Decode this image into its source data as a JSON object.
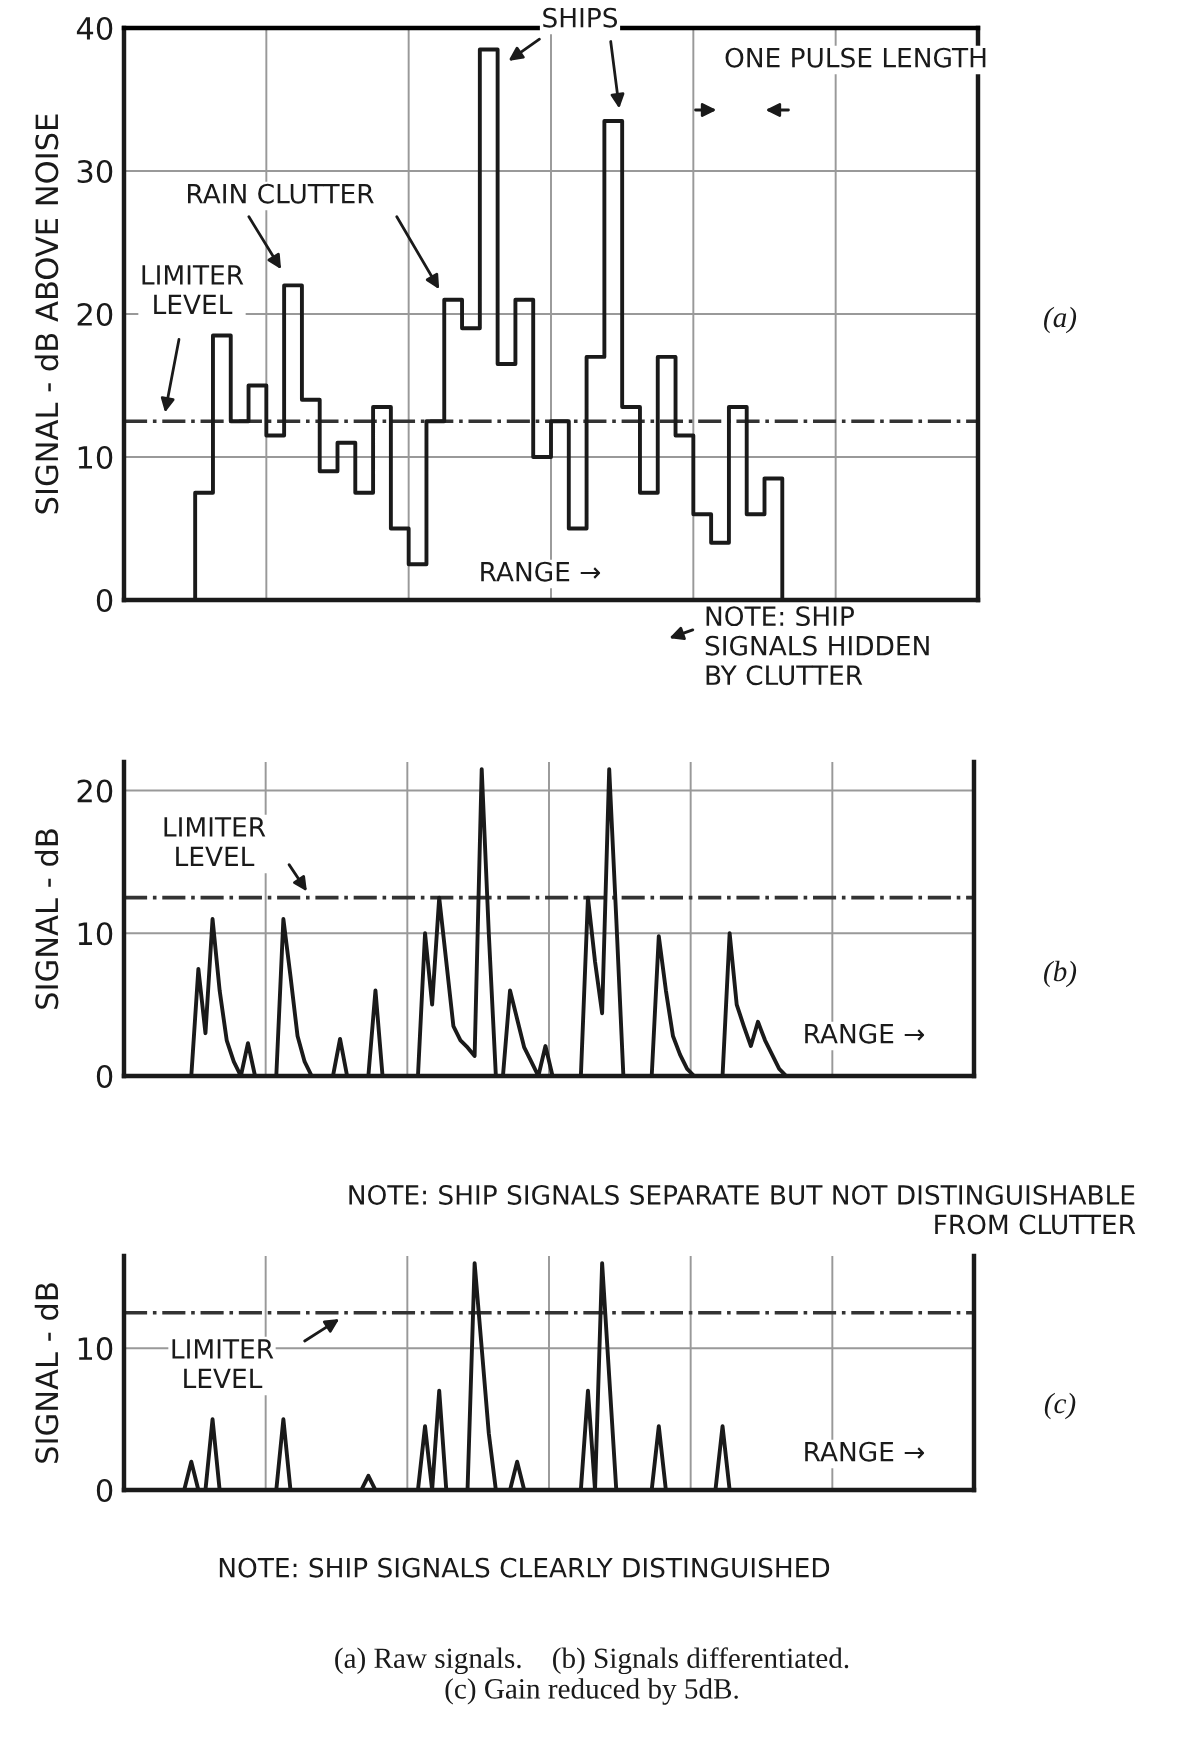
{
  "chart_data": [
    {
      "type": "step",
      "ylabel": "SIGNAL - dB ABOVE NOISE",
      "ylim": [
        0,
        40
      ],
      "yticks": [
        0,
        10,
        20,
        30,
        40
      ],
      "grid": true,
      "categories": [
        null,
        null,
        null,
        null,
        null,
        null,
        null,
        null,
        null,
        null,
        null,
        null,
        null,
        null,
        null,
        null,
        null,
        null,
        null,
        null,
        null,
        null,
        null,
        null,
        null,
        null,
        null,
        null,
        null,
        null,
        null,
        null,
        null,
        null,
        null,
        null,
        null,
        null,
        null,
        null,
        null,
        null,
        null,
        null,
        null,
        null,
        null,
        null
      ],
      "series": [
        {
          "color": "#1a1a1a",
          "values": [
            0,
            0,
            0,
            0,
            7.5,
            18.5,
            12.5,
            15,
            11.5,
            22,
            14,
            9,
            11,
            7.5,
            13.5,
            5,
            2.5,
            12.5,
            21,
            19,
            38.5,
            16.5,
            21,
            10,
            12.5,
            5,
            17,
            33.5,
            13.5,
            7.5,
            17,
            11.5,
            6,
            4,
            13.5,
            6,
            8.5,
            0,
            0,
            0,
            0,
            0,
            0,
            0,
            0,
            0,
            0,
            0
          ]
        }
      ],
      "ref_lines": [
        {
          "axis": "y",
          "value": 12.5,
          "label": "LIMITER\nLEVEL",
          "line_style": "dashdot",
          "color": "#333333"
        }
      ],
      "annotations": [
        "SHIPS",
        "RAIN CLUTTER",
        "ONE PULSE LENGTH",
        "RANGE →",
        "NOTE: SHIP\nSIGNALS HIDDEN\nBY CLUTTER",
        "(a)"
      ]
    },
    {
      "type": "line",
      "ylabel": "SIGNAL - dB",
      "ylim": [
        0,
        22
      ],
      "yticks": [
        0,
        10,
        20
      ],
      "grid": true,
      "categories": [
        null,
        null,
        null,
        null,
        null,
        null,
        null,
        null,
        null,
        null,
        null,
        null,
        null,
        null,
        null,
        null,
        null,
        null,
        null,
        null,
        null,
        null,
        null,
        null,
        null,
        null,
        null,
        null,
        null,
        null,
        null,
        null,
        null,
        null,
        null,
        null,
        null,
        null,
        null,
        null,
        null,
        null,
        null,
        null,
        null,
        null,
        null,
        null,
        null,
        null,
        null,
        null,
        null,
        null,
        null,
        null,
        null,
        null,
        null,
        null,
        null,
        null,
        null,
        null,
        null,
        null,
        null,
        null,
        null,
        null,
        null,
        null,
        null,
        null,
        null,
        null,
        null,
        null,
        null,
        null,
        null,
        null,
        null,
        null,
        null,
        null,
        null,
        null,
        null,
        null,
        null,
        null,
        null,
        null,
        null,
        null,
        null,
        null,
        null,
        null,
        null,
        null,
        null,
        null,
        null,
        null,
        null,
        null,
        null,
        null,
        null,
        null,
        null,
        null,
        null,
        null,
        null,
        null,
        null,
        null
      ],
      "series": [
        {
          "color": "#1a1a1a",
          "values": [
            null,
            null,
            null,
            null,
            null,
            null,
            null,
            null,
            null,
            0,
            7.5,
            3,
            11,
            6,
            2.5,
            1,
            0,
            2.3,
            0,
            0,
            0,
            0,
            11,
            7,
            2.8,
            1,
            0,
            0,
            0,
            0,
            2.6,
            0,
            0,
            0,
            0,
            6,
            0,
            0,
            0,
            0,
            0,
            0,
            10,
            5,
            12.5,
            8,
            3.5,
            2.5,
            2,
            1.4,
            21.5,
            10,
            0,
            0,
            6,
            4,
            2,
            1,
            0,
            2.1,
            0,
            0,
            0,
            0,
            0,
            12.5,
            8,
            4.4,
            21.5,
            11,
            0,
            0,
            0,
            0,
            0,
            9.8,
            6,
            2.8,
            1.5,
            0.5,
            0,
            0,
            0,
            0,
            0,
            10,
            5,
            3.5,
            2.1,
            3.8,
            2.5,
            1.5,
            0.5,
            0,
            null,
            null,
            null,
            null,
            null,
            null,
            null,
            null,
            null,
            null,
            null,
            null,
            null,
            null,
            null,
            null,
            null,
            null,
            null,
            null,
            null,
            null,
            null,
            null,
            null,
            null
          ]
        }
      ],
      "ref_lines": [
        {
          "axis": "y",
          "value": 12.5,
          "label": "LIMITER\nLEVEL",
          "line_style": "dashdot",
          "color": "#333333"
        }
      ],
      "annotations": [
        "RANGE →",
        "NOTE: SHIP SIGNALS SEPARATE BUT NOT DISTINGUISHABLE\nFROM CLUTTER",
        "(b)"
      ]
    },
    {
      "type": "line",
      "ylabel": "SIGNAL - dB",
      "ylim": [
        0,
        16.5
      ],
      "yticks": [
        0,
        10
      ],
      "grid": true,
      "categories": [
        null,
        null,
        null,
        null,
        null,
        null,
        null,
        null,
        null,
        null,
        null,
        null,
        null,
        null,
        null,
        null,
        null,
        null,
        null,
        null,
        null,
        null,
        null,
        null,
        null,
        null,
        null,
        null,
        null,
        null,
        null,
        null,
        null,
        null,
        null,
        null,
        null,
        null,
        null,
        null,
        null,
        null,
        null,
        null,
        null,
        null,
        null,
        null,
        null,
        null,
        null,
        null,
        null,
        null,
        null,
        null,
        null,
        null,
        null,
        null,
        null,
        null,
        null,
        null,
        null,
        null,
        null,
        null,
        null,
        null,
        null,
        null,
        null,
        null,
        null,
        null,
        null,
        null,
        null,
        null,
        null,
        null,
        null,
        null,
        null,
        null,
        null,
        null,
        null,
        null,
        null,
        null,
        null,
        null,
        null,
        null,
        null,
        null,
        null,
        null,
        null,
        null,
        null,
        null,
        null,
        null,
        null,
        null,
        null,
        null,
        null,
        null,
        null,
        null,
        null,
        null,
        null,
        null,
        null,
        null
      ],
      "series": [
        {
          "color": "#1a1a1a",
          "values": [
            null,
            null,
            null,
            null,
            null,
            null,
            null,
            null,
            0,
            2,
            0,
            0,
            5,
            0,
            0,
            0,
            0,
            0,
            0,
            0,
            0,
            0,
            5,
            0,
            0,
            0,
            0,
            0,
            0,
            0,
            0,
            0,
            0,
            0,
            1,
            0,
            0,
            0,
            0,
            0,
            0,
            0,
            4.5,
            0,
            7,
            0,
            0,
            0,
            0,
            16,
            10,
            4,
            0,
            0,
            0,
            2,
            0,
            0,
            0,
            0,
            0,
            0,
            0,
            0,
            0,
            7,
            0,
            16,
            8,
            0,
            0,
            0,
            0,
            0,
            0,
            4.5,
            0,
            0,
            0,
            0,
            0,
            0,
            0,
            0,
            4.5,
            0,
            0,
            null,
            null,
            null,
            null,
            null,
            null,
            null,
            null,
            null,
            null,
            null,
            null,
            null,
            null,
            null,
            null,
            null,
            null,
            null,
            null,
            null,
            null,
            null,
            null,
            null,
            null,
            null,
            null,
            null,
            null,
            null,
            null,
            null
          ]
        }
      ],
      "ref_lines": [
        {
          "axis": "y",
          "value": 12.5,
          "label": "LIMITER\nLEVEL",
          "line_style": "dashdot",
          "color": "#333333"
        }
      ],
      "annotations": [
        "RANGE →",
        "NOTE: SHIP SIGNALS CLEARLY DISTINGUISHED",
        "(c)",
        "(a) Raw signals.    (b) Signals differentiated.\n(c) Gain reduced by 5dB."
      ]
    }
  ]
}
